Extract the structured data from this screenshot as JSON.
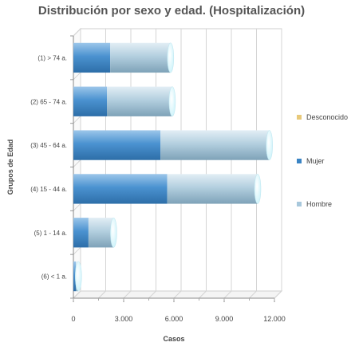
{
  "chart_data": {
    "type": "bar",
    "orientation": "horizontal",
    "stacked": true,
    "style": "3d-cylinder",
    "title": "Distribución por sexo y edad. (Hospitalización)",
    "xlabel": "Casos",
    "ylabel": "Grupos de Edad",
    "categories": [
      "(1) > 74 a.",
      "(2) 65 - 74 a.",
      "(3) 45 - 64 a.",
      "(4) 15 - 44 a.",
      "(5) 1 - 14 a.",
      "(6) < 1 a."
    ],
    "series": [
      {
        "name": "Desconocido",
        "color": "#e8c97a",
        "values": [
          0,
          0,
          0,
          0,
          0,
          0
        ]
      },
      {
        "name": "Mujer",
        "color": "#3a84c4",
        "values": [
          2200,
          2000,
          5200,
          5600,
          900,
          150
        ]
      },
      {
        "name": "Hombre",
        "color": "#a8c8dc",
        "values": [
          3600,
          3900,
          6500,
          5400,
          1500,
          150
        ]
      }
    ],
    "xlim": [
      0,
      12000
    ],
    "xticks": [
      "0",
      "3.000",
      "6.000",
      "9.000",
      "12.000"
    ],
    "tick_values": [
      0,
      3000,
      6000,
      9000,
      12000
    ],
    "grid": true,
    "legend_position": "right"
  }
}
